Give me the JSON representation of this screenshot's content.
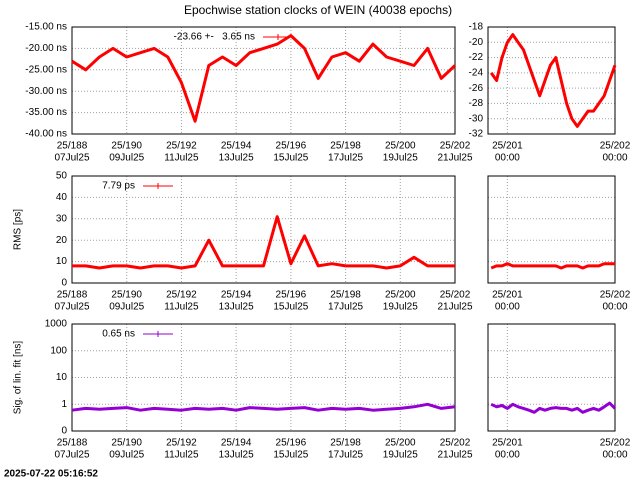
{
  "title": "Epochwise station clocks of WEIN (40038 epochs)",
  "timestamp": "2025-07-22 05:16:52",
  "chart_data": [
    {
      "type": "line",
      "x": [
        188,
        188.5,
        189,
        189.5,
        190,
        190.5,
        191,
        191.5,
        192,
        192.5,
        193,
        193.5,
        194,
        194.5,
        195,
        195.5,
        196,
        196.5,
        197,
        197.5,
        198,
        198.5,
        199,
        199.5,
        200,
        200.5,
        201,
        201.5,
        202
      ],
      "series": [
        {
          "name": "-23.66 +-   3.65 ns",
          "color": "#ff0000",
          "values": [
            -23,
            -25,
            -22,
            -20,
            -22,
            -21,
            -20,
            -22,
            -28,
            -37,
            -24,
            -22,
            -24,
            -21,
            -20,
            -19,
            -17,
            -20,
            -27,
            -22,
            -21,
            -23,
            -19,
            -22,
            -23,
            -24,
            -20,
            -27,
            -24
          ]
        }
      ],
      "xlim": [
        188,
        202
      ],
      "xticks": [
        {
          "value": 188,
          "label": "25/188",
          "sublabel": "07Jul25"
        },
        {
          "value": 190,
          "label": "25/190",
          "sublabel": "09Jul25"
        },
        {
          "value": 192,
          "label": "25/192",
          "sublabel": "11Jul25"
        },
        {
          "value": 194,
          "label": "25/194",
          "sublabel": "13Jul25"
        },
        {
          "value": 196,
          "label": "25/196",
          "sublabel": "15Jul25"
        },
        {
          "value": 198,
          "label": "25/198",
          "sublabel": "17Jul25"
        },
        {
          "value": 200,
          "label": "25/200",
          "sublabel": "19Jul25"
        },
        {
          "value": 202,
          "label": "25/202",
          "sublabel": "21Jul25"
        }
      ],
      "ylim": [
        -40,
        -15
      ],
      "yticks": [
        {
          "value": -15,
          "label": "-15.00 ns"
        },
        {
          "value": -20,
          "label": "-20.00 ns"
        },
        {
          "value": -25,
          "label": "-25.00 ns"
        },
        {
          "value": -30,
          "label": "-30.00 ns"
        },
        {
          "value": -35,
          "label": "-35.00 ns"
        },
        {
          "value": -40,
          "label": "-40.00 ns"
        }
      ],
      "grid": true
    },
    {
      "type": "line",
      "x": [
        200.85,
        200.9,
        200.95,
        201,
        201.05,
        201.1,
        201.15,
        201.2,
        201.25,
        201.3,
        201.35,
        201.4,
        201.45,
        201.5,
        201.55,
        201.6,
        201.65,
        201.7,
        201.75,
        201.8,
        201.85,
        201.9,
        201.95,
        202
      ],
      "series": [
        {
          "color": "#ff0000",
          "values": [
            -24,
            -25,
            -22,
            -20,
            -19,
            -20,
            -21,
            -23,
            -25,
            -27,
            -25,
            -23,
            -22,
            -25,
            -28,
            -30,
            -31,
            -30,
            -29,
            -29,
            -28,
            -27,
            -25,
            -23
          ]
        }
      ],
      "xlim": [
        200.82,
        202
      ],
      "xticks": [
        {
          "value": 201,
          "label": "25/201",
          "sublabel": "00:00"
        },
        {
          "value": 202,
          "label": "25/202",
          "sublabel": "00:00"
        }
      ],
      "ylim": [
        -32,
        -18
      ],
      "yticks": [
        -18,
        -20,
        -22,
        -24,
        -26,
        -28,
        -30,
        -32
      ],
      "grid": true
    },
    {
      "type": "line",
      "ylabel": "RMS [ps]",
      "x": [
        188,
        188.5,
        189,
        189.5,
        190,
        190.5,
        191,
        191.5,
        192,
        192.5,
        193,
        193.5,
        194,
        194.5,
        195,
        195.5,
        196,
        196.5,
        197,
        197.5,
        198,
        198.5,
        199,
        199.5,
        200,
        200.5,
        201,
        201.5,
        202
      ],
      "series": [
        {
          "name": "7.79 ps",
          "color": "#ff0000",
          "values": [
            8,
            8,
            7,
            8,
            8,
            7,
            8,
            8,
            7,
            8,
            20,
            8,
            8,
            8,
            8,
            31,
            9,
            22,
            8,
            9,
            8,
            8,
            8,
            7,
            8,
            12,
            8,
            8,
            8
          ]
        }
      ],
      "xlim": [
        188,
        202
      ],
      "xticks": [
        {
          "value": 188,
          "label": "25/188",
          "sublabel": "07Jul25"
        },
        {
          "value": 190,
          "label": "25/190",
          "sublabel": "09Jul25"
        },
        {
          "value": 192,
          "label": "25/192",
          "sublabel": "11Jul25"
        },
        {
          "value": 194,
          "label": "25/194",
          "sublabel": "13Jul25"
        },
        {
          "value": 196,
          "label": "25/196",
          "sublabel": "15Jul25"
        },
        {
          "value": 198,
          "label": "25/198",
          "sublabel": "17Jul25"
        },
        {
          "value": 200,
          "label": "25/200",
          "sublabel": "19Jul25"
        },
        {
          "value": 202,
          "label": "25/202",
          "sublabel": "21Jul25"
        }
      ],
      "ylim": [
        0,
        50
      ],
      "yticks": [
        0,
        10,
        20,
        30,
        40,
        50
      ],
      "grid": true
    },
    {
      "type": "line",
      "x": [
        200.85,
        200.9,
        200.95,
        201,
        201.05,
        201.1,
        201.15,
        201.2,
        201.25,
        201.3,
        201.35,
        201.4,
        201.45,
        201.5,
        201.55,
        201.6,
        201.65,
        201.7,
        201.75,
        201.8,
        201.85,
        201.9,
        201.95,
        202
      ],
      "series": [
        {
          "color": "#ff0000",
          "values": [
            7,
            8,
            8,
            9,
            8,
            8,
            8,
            8,
            8,
            8,
            8,
            8,
            8,
            7,
            8,
            8,
            8,
            7,
            8,
            8,
            8,
            9,
            9,
            9
          ]
        }
      ],
      "xlim": [
        200.82,
        202
      ],
      "xticks": [
        {
          "value": 201,
          "label": "25/201",
          "sublabel": "00:00"
        },
        {
          "value": 202,
          "label": "25/202",
          "sublabel": "00:00"
        }
      ],
      "ylim": [
        0,
        50
      ],
      "yticks": [
        0,
        10,
        20,
        30,
        40,
        50
      ],
      "ytick_labels": false,
      "grid": true
    },
    {
      "type": "line",
      "ylabel": "Sig. of lin. fit [ns]",
      "log_y": true,
      "x": [
        188,
        188.5,
        189,
        189.5,
        190,
        190.5,
        191,
        191.5,
        192,
        192.5,
        193,
        193.5,
        194,
        194.5,
        195,
        195.5,
        196,
        196.5,
        197,
        197.5,
        198,
        198.5,
        199,
        199.5,
        200,
        200.5,
        201,
        201.5,
        202
      ],
      "series": [
        {
          "name": "0.65 ns",
          "color": "#9400d3",
          "values": [
            0.6,
            0.7,
            0.65,
            0.7,
            0.75,
            0.6,
            0.7,
            0.65,
            0.6,
            0.7,
            0.65,
            0.7,
            0.6,
            0.75,
            0.7,
            0.65,
            0.7,
            0.75,
            0.6,
            0.7,
            0.65,
            0.7,
            0.6,
            0.65,
            0.7,
            0.8,
            1.0,
            0.7,
            0.8
          ]
        }
      ],
      "xlim": [
        188,
        202
      ],
      "xticks": [
        {
          "value": 188,
          "label": "25/188",
          "sublabel": "07Jul25"
        },
        {
          "value": 190,
          "label": "25/190",
          "sublabel": "09Jul25"
        },
        {
          "value": 192,
          "label": "25/192",
          "sublabel": "11Jul25"
        },
        {
          "value": 194,
          "label": "25/194",
          "sublabel": "13Jul25"
        },
        {
          "value": 196,
          "label": "25/196",
          "sublabel": "15Jul25"
        },
        {
          "value": 198,
          "label": "25/198",
          "sublabel": "17Jul25"
        },
        {
          "value": 200,
          "label": "25/200",
          "sublabel": "19Jul25"
        },
        {
          "value": 202,
          "label": "25/202",
          "sublabel": "21Jul25"
        }
      ],
      "ylim": [
        0.1,
        1000
      ],
      "yticks": [
        1000,
        100,
        10,
        1,
        {
          "value": 0.1,
          "label": "0"
        }
      ],
      "grid": true
    },
    {
      "type": "line",
      "log_y": true,
      "x": [
        200.85,
        200.9,
        200.95,
        201,
        201.05,
        201.1,
        201.15,
        201.2,
        201.25,
        201.3,
        201.35,
        201.4,
        201.45,
        201.5,
        201.55,
        201.6,
        201.65,
        201.7,
        201.75,
        201.8,
        201.85,
        201.9,
        201.95,
        202
      ],
      "series": [
        {
          "color": "#9400d3",
          "values": [
            1.0,
            0.8,
            0.9,
            0.7,
            1.0,
            0.8,
            0.7,
            0.6,
            0.5,
            0.7,
            0.6,
            0.7,
            0.75,
            0.7,
            0.7,
            0.6,
            0.7,
            0.5,
            0.6,
            0.7,
            0.6,
            0.8,
            1.1,
            0.7
          ]
        }
      ],
      "xlim": [
        200.82,
        202
      ],
      "xticks": [
        {
          "value": 201,
          "label": "25/201",
          "sublabel": "00:00"
        },
        {
          "value": 202,
          "label": "25/202",
          "sublabel": "00:00"
        }
      ],
      "ylim": [
        0.1,
        1000
      ],
      "yticks": [
        1000,
        100,
        10,
        1,
        0.1
      ],
      "ytick_labels": false,
      "grid": true
    }
  ]
}
